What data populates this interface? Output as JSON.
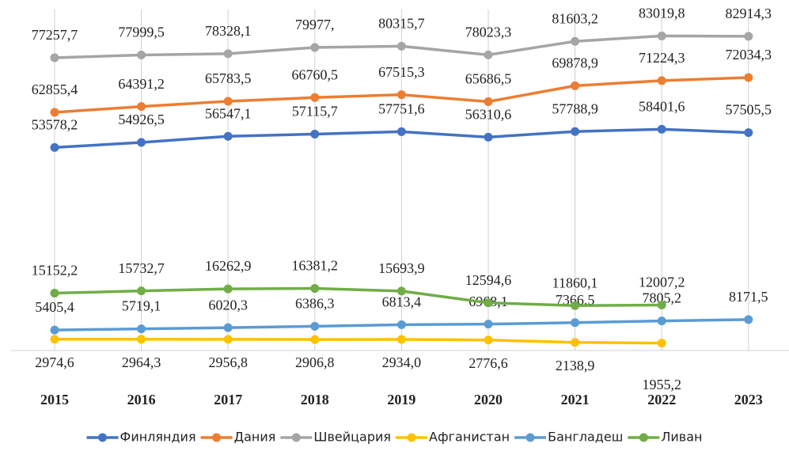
{
  "chart_data": {
    "type": "line",
    "categories": [
      "2015",
      "2016",
      "2017",
      "2018",
      "2019",
      "2020",
      "2021",
      "2022",
      "2023"
    ],
    "series": [
      {
        "name": "Финляндия",
        "color": "#4472c4",
        "values": [
          53578.2,
          54926.5,
          56547.1,
          57115.7,
          57751.6,
          56310.6,
          57788.9,
          58401.6,
          57505.5
        ],
        "value_labels": [
          "53578,2",
          "54926,5",
          "56547,1",
          "57115,7",
          "57751,6",
          "56310,6",
          "57788,9",
          "58401,6",
          "57505,5"
        ]
      },
      {
        "name": "Дания",
        "color": "#ed7d31",
        "values": [
          62855.4,
          64391.2,
          65783.5,
          66760.5,
          67515.3,
          65686.5,
          69878.9,
          71224.3,
          72034.3
        ],
        "value_labels": [
          "62855,4",
          "64391,2",
          "65783,5",
          "66760,5",
          "67515,3",
          "65686,5",
          "69878,9",
          "71224,3",
          "72034,3"
        ]
      },
      {
        "name": "Швейцария",
        "color": "#a5a5a5",
        "values": [
          77257.7,
          77999.5,
          78328.1,
          79977,
          80315.7,
          78023.3,
          81603.2,
          83019.8,
          82914.3
        ],
        "value_labels": [
          "77257,7",
          "77999,5",
          "78328,1",
          "79977,",
          "80315,7",
          "78023,3",
          "81603,2",
          "83019,8",
          "82914,3"
        ]
      },
      {
        "name": "Афганистан",
        "color": "#ffc000",
        "values": [
          2974.6,
          2964.3,
          2956.8,
          2906.8,
          2934.0,
          2776.6,
          2138.9,
          1955.2,
          null
        ],
        "value_labels": [
          "2974,6",
          "2964,3",
          "2956,8",
          "2906,8",
          "2934,0",
          "2776,6",
          "2138,9",
          "1955,2",
          null
        ]
      },
      {
        "name": "Бангладеш",
        "color": "#5b9bd5",
        "values": [
          5405.4,
          5719.1,
          6020.3,
          6386.3,
          6813.4,
          6968.1,
          7366.5,
          7805.2,
          8171.5
        ],
        "value_labels": [
          "5405,4",
          "5719,1",
          "6020,3",
          "6386,3",
          "6813,4",
          "6968,1",
          "7366,5",
          "7805,2",
          "8171,5"
        ]
      },
      {
        "name": "Ливан",
        "color": "#70ad47",
        "values": [
          15152.2,
          15732.7,
          16262.9,
          16381.2,
          15693.9,
          12594.6,
          11860.1,
          12007.2,
          null
        ],
        "value_labels": [
          "15152,2",
          "15732,7",
          "16262,9",
          "16381,2",
          "15693,9",
          "12594,6",
          "11860,1",
          "12007,2",
          null
        ]
      }
    ],
    "ylim": [
      0,
      90000
    ],
    "grid": true,
    "legend": "bottom"
  }
}
